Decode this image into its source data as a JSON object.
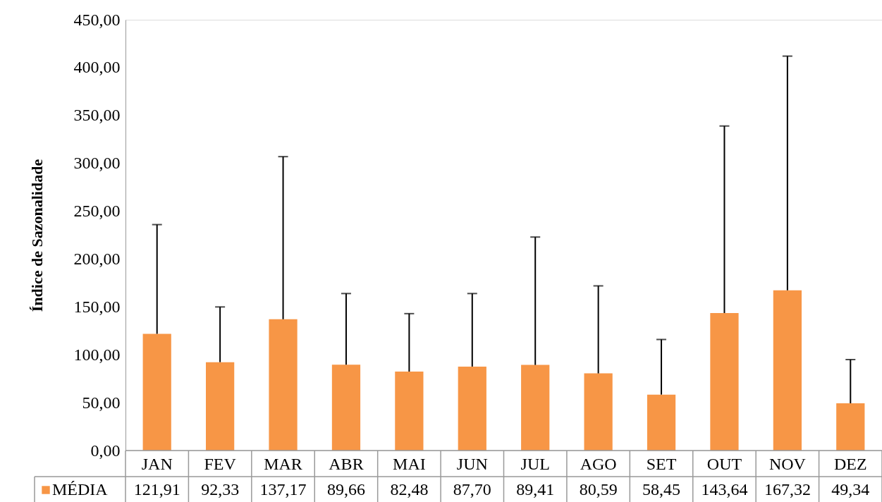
{
  "chart_data": {
    "type": "bar",
    "ylabel": "Índice de Sazonalidade",
    "categories": [
      "JAN",
      "FEV",
      "MAR",
      "ABR",
      "MAI",
      "JUN",
      "JUL",
      "AGO",
      "SET",
      "OUT",
      "NOV",
      "DEZ"
    ],
    "series": [
      {
        "name": "MÉDIA",
        "color": "#f79646",
        "values": [
          121.91,
          92.33,
          137.17,
          89.66,
          82.48,
          87.7,
          89.41,
          80.59,
          58.45,
          143.64,
          167.32,
          49.34
        ],
        "value_labels": [
          "121,91",
          "92,33",
          "137,17",
          "89,66",
          "82,48",
          "87,70",
          "89,41",
          "80,59",
          "58,45",
          "143,64",
          "167,32",
          "49,34"
        ],
        "errors": [
          [
            121.91,
            236
          ],
          [
            92.33,
            150
          ],
          [
            137.17,
            307
          ],
          [
            89.66,
            164
          ],
          [
            82.48,
            143
          ],
          [
            87.7,
            164
          ],
          [
            89.41,
            223
          ],
          [
            80.59,
            172
          ],
          [
            58.45,
            116
          ],
          [
            143.64,
            339
          ],
          [
            167.32,
            412
          ],
          [
            49.34,
            95
          ]
        ]
      }
    ],
    "ylim": [
      0,
      450
    ],
    "yticks": [
      {
        "value": 0,
        "label": "0,00"
      },
      {
        "value": 50,
        "label": "50,00"
      },
      {
        "value": 100,
        "label": "100,00"
      },
      {
        "value": 150,
        "label": "150,00"
      },
      {
        "value": 200,
        "label": "200,00"
      },
      {
        "value": 250,
        "label": "250,00"
      },
      {
        "value": 300,
        "label": "300,00"
      },
      {
        "value": 350,
        "label": "350,00"
      },
      {
        "value": 400,
        "label": "400,00"
      },
      {
        "value": 450,
        "label": "450,00"
      }
    ],
    "legend": "bottom",
    "grid": false
  }
}
